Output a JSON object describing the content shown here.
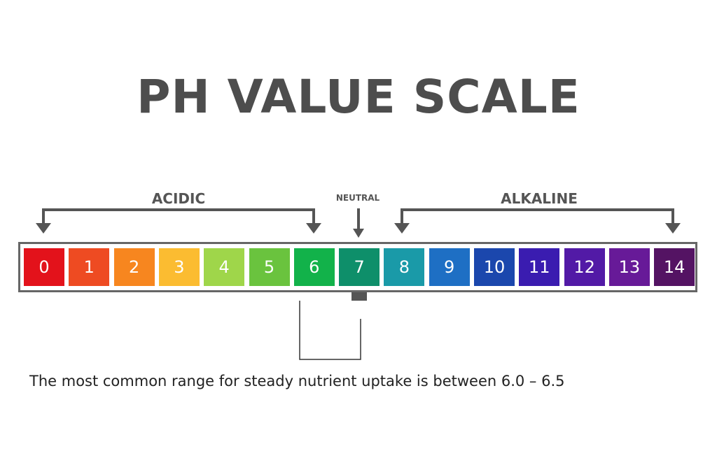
{
  "title": "PH VALUE SCALE",
  "ranges": {
    "acidic": "ACIDIC",
    "neutral": "NEUTRAL",
    "alkaline": "ALKALINE"
  },
  "scale": {
    "values": [
      "0",
      "1",
      "2",
      "3",
      "4",
      "5",
      "6",
      "7",
      "8",
      "9",
      "10",
      "11",
      "12",
      "13",
      "14"
    ],
    "colors": [
      "#e3121b",
      "#ee4b22",
      "#f7861f",
      "#fbbc31",
      "#9fd64a",
      "#6ac33e",
      "#12b24a",
      "#0e8f6a",
      "#1a9aa8",
      "#1e6fc4",
      "#1b47ad",
      "#3a1cb0",
      "#521aa6",
      "#671a98",
      "#541363"
    ]
  },
  "note": "The most common range for steady nutrient uptake is between 6.0 – 6.5"
}
